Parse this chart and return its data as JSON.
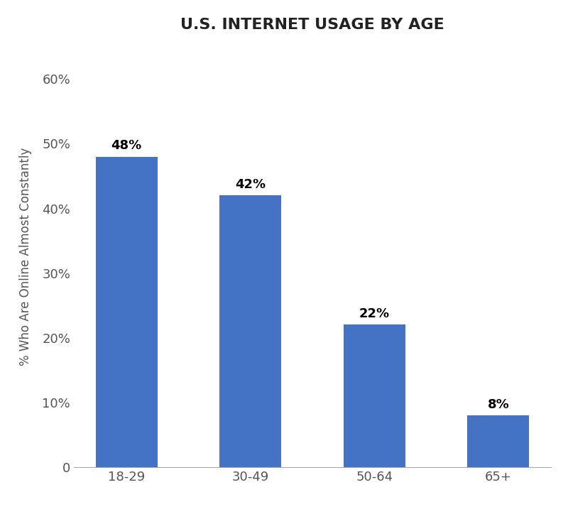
{
  "title": "U.S. INTERNET USAGE BY AGE",
  "categories": [
    "18-29",
    "30-49",
    "50-64",
    "65+"
  ],
  "values": [
    48,
    42,
    22,
    8
  ],
  "bar_color": "#4472C4",
  "ylabel": "% Who Are Online Almost Constantly",
  "ylim": [
    0,
    65
  ],
  "yticks": [
    0,
    10,
    20,
    30,
    40,
    50,
    60
  ],
  "ytick_labels": [
    "0",
    "10%",
    "20%",
    "30%",
    "40%",
    "50%",
    "60%"
  ],
  "bar_width": 0.5,
  "title_fontsize": 16,
  "label_fontsize": 12,
  "tick_fontsize": 13,
  "annotation_fontsize": 13,
  "background_color": "#ffffff"
}
